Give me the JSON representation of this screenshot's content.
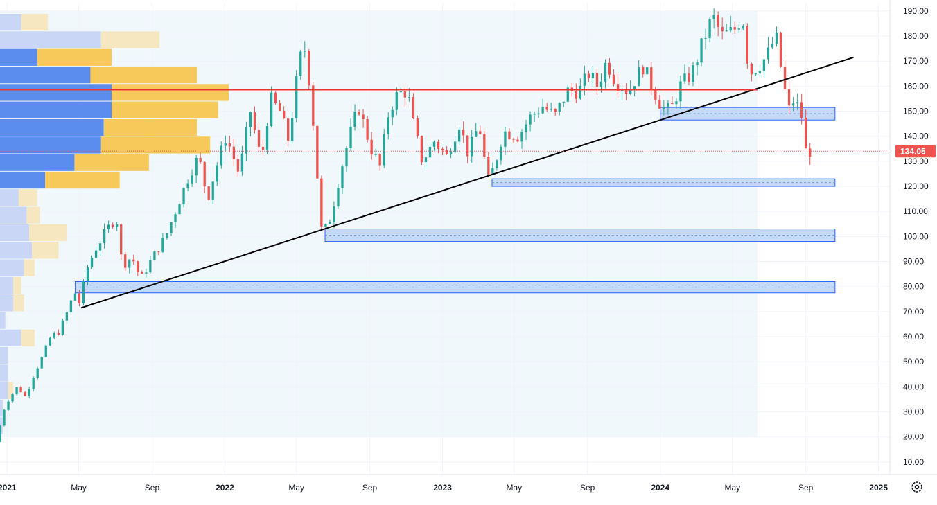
{
  "chart_data": {
    "type": "candlestick",
    "instrument_price_last": "134.05",
    "y_axis": {
      "min": 5,
      "max": 193,
      "ticks": [
        "10.00",
        "20.00",
        "30.00",
        "40.00",
        "50.00",
        "60.00",
        "70.00",
        "80.00",
        "90.00",
        "100.00",
        "110.00",
        "120.00",
        "130.00",
        "140.00",
        "150.00",
        "160.00",
        "170.00",
        "180.00",
        "190.00"
      ]
    },
    "x_axis": {
      "range": [
        "2020-12-20",
        "2025-01-20"
      ],
      "ticks": [
        {
          "label": "2021",
          "date": "2021-01-01",
          "bold": true
        },
        {
          "label": "May",
          "date": "2021-05-01"
        },
        {
          "label": "Sep",
          "date": "2021-09-01"
        },
        {
          "label": "2022",
          "date": "2022-01-01",
          "bold": true
        },
        {
          "label": "May",
          "date": "2022-05-01"
        },
        {
          "label": "Sep",
          "date": "2022-09-01"
        },
        {
          "label": "2023",
          "date": "2023-01-01",
          "bold": true
        },
        {
          "label": "May",
          "date": "2023-05-01"
        },
        {
          "label": "Sep",
          "date": "2023-09-01"
        },
        {
          "label": "2024",
          "date": "2024-01-01",
          "bold": true
        },
        {
          "label": "May",
          "date": "2024-05-01"
        },
        {
          "label": "Sep",
          "date": "2024-09-01"
        },
        {
          "label": "2025",
          "date": "2025-01-01",
          "bold": true
        }
      ]
    },
    "price_path": [
      [
        "2020-12-20",
        18
      ],
      [
        "2021-01-05",
        33
      ],
      [
        "2021-01-25",
        40
      ],
      [
        "2021-02-08",
        36
      ],
      [
        "2021-02-22",
        45
      ],
      [
        "2021-03-08",
        52
      ],
      [
        "2021-03-22",
        60
      ],
      [
        "2021-04-05",
        62
      ],
      [
        "2021-04-19",
        70
      ],
      [
        "2021-05-01",
        78
      ],
      [
        "2021-05-10",
        73
      ],
      [
        "2021-05-20",
        86
      ],
      [
        "2021-06-05",
        95
      ],
      [
        "2021-06-25",
        103
      ],
      [
        "2021-07-10",
        108
      ],
      [
        "2021-07-20",
        88
      ],
      [
        "2021-08-05",
        92
      ],
      [
        "2021-08-20",
        83
      ],
      [
        "2021-09-10",
        92
      ],
      [
        "2021-10-01",
        100
      ],
      [
        "2021-10-20",
        112
      ],
      [
        "2021-11-10",
        125
      ],
      [
        "2021-11-25",
        132
      ],
      [
        "2021-12-10",
        115
      ],
      [
        "2021-12-25",
        128
      ],
      [
        "2022-01-10",
        140
      ],
      [
        "2022-02-01",
        125
      ],
      [
        "2022-02-20",
        150
      ],
      [
        "2022-03-10",
        130
      ],
      [
        "2022-03-25",
        155
      ],
      [
        "2022-04-10",
        150
      ],
      [
        "2022-04-25",
        138
      ],
      [
        "2022-05-10",
        165
      ],
      [
        "2022-05-20",
        178
      ],
      [
        "2022-06-01",
        158
      ],
      [
        "2022-06-10",
        130
      ],
      [
        "2022-06-20",
        100
      ],
      [
        "2022-07-05",
        108
      ],
      [
        "2022-07-20",
        125
      ],
      [
        "2022-08-05",
        140
      ],
      [
        "2022-08-20",
        152
      ],
      [
        "2022-09-10",
        135
      ],
      [
        "2022-09-25",
        128
      ],
      [
        "2022-10-10",
        150
      ],
      [
        "2022-10-25",
        157
      ],
      [
        "2022-11-10",
        158
      ],
      [
        "2022-11-20",
        145
      ],
      [
        "2022-12-05",
        130
      ],
      [
        "2022-12-25",
        138
      ],
      [
        "2023-01-15",
        132
      ],
      [
        "2023-02-05",
        145
      ],
      [
        "2023-02-20",
        133
      ],
      [
        "2023-03-10",
        145
      ],
      [
        "2023-03-25",
        122
      ],
      [
        "2023-04-05",
        128
      ],
      [
        "2023-04-20",
        142
      ],
      [
        "2023-05-15",
        140
      ],
      [
        "2023-06-05",
        148
      ],
      [
        "2023-06-25",
        152
      ],
      [
        "2023-07-15",
        148
      ],
      [
        "2023-08-05",
        158
      ],
      [
        "2023-08-25",
        158
      ],
      [
        "2023-09-10",
        165
      ],
      [
        "2023-09-25",
        160
      ],
      [
        "2023-10-10",
        170
      ],
      [
        "2023-10-25",
        162
      ],
      [
        "2023-11-15",
        158
      ],
      [
        "2023-12-10",
        168
      ],
      [
        "2023-12-25",
        160
      ],
      [
        "2024-01-10",
        152
      ],
      [
        "2024-01-25",
        150
      ],
      [
        "2024-02-10",
        160
      ],
      [
        "2024-03-01",
        165
      ],
      [
        "2024-03-20",
        178
      ],
      [
        "2024-04-05",
        188
      ],
      [
        "2024-04-20",
        180
      ],
      [
        "2024-05-10",
        182
      ],
      [
        "2024-05-25",
        188
      ],
      [
        "2024-06-05",
        165
      ],
      [
        "2024-06-20",
        168
      ],
      [
        "2024-07-05",
        172
      ],
      [
        "2024-07-20",
        180
      ],
      [
        "2024-08-01",
        162
      ],
      [
        "2024-08-10",
        150
      ],
      [
        "2024-08-20",
        155
      ],
      [
        "2024-09-01",
        148
      ],
      [
        "2024-09-08",
        134.05
      ]
    ],
    "candle_interval_days": 7,
    "lines": [
      {
        "kind": "trendline",
        "from": [
          "2021-05-05",
          71.5
        ],
        "to": [
          "2024-11-20",
          171.5
        ],
        "color": "#000000"
      },
      {
        "kind": "resistance",
        "from": [
          "2020-12-20",
          158.5
        ],
        "to": [
          "2024-06-12",
          158.5
        ],
        "color": "#e53935"
      }
    ],
    "zones": [
      {
        "from": [
          "2021-04-25",
          82
        ],
        "to": [
          "2024-10-20",
          77.5
        ]
      },
      {
        "from": [
          "2022-06-18",
          103
        ],
        "to": [
          "2024-10-20",
          98
        ]
      },
      {
        "from": [
          "2023-03-25",
          123
        ],
        "to": [
          "2024-10-20",
          120
        ]
      },
      {
        "from": [
          "2024-01-01",
          151.5
        ],
        "to": [
          "2024-10-20",
          146.5
        ]
      }
    ],
    "background_region": {
      "from": "2020-12-20",
      "to": "2024-06-12",
      "y": [
        20,
        190
      ]
    },
    "volume_profile_bins": [
      {
        "low": 182,
        "high": 189,
        "up": 8,
        "down": 10
      },
      {
        "low": 175,
        "high": 182,
        "up": 38,
        "down": 22
      },
      {
        "low": 168,
        "high": 175,
        "up": 14,
        "down": 28
      },
      {
        "low": 161,
        "high": 168,
        "up": 34,
        "down": 40
      },
      {
        "low": 154,
        "high": 161,
        "up": 42,
        "down": 44
      },
      {
        "low": 147,
        "high": 154,
        "up": 42,
        "down": 40
      },
      {
        "low": 140,
        "high": 147,
        "up": 39,
        "down": 35
      },
      {
        "low": 133,
        "high": 140,
        "up": 38,
        "down": 41
      },
      {
        "low": 126,
        "high": 133,
        "up": 28,
        "down": 28
      },
      {
        "low": 119,
        "high": 126,
        "up": 17,
        "down": 28
      },
      {
        "low": 112,
        "high": 119,
        "up": 7,
        "down": 7
      },
      {
        "low": 105,
        "high": 112,
        "up": 10,
        "down": 5
      },
      {
        "low": 98,
        "high": 105,
        "up": 11,
        "down": 14
      },
      {
        "low": 91,
        "high": 98,
        "up": 12,
        "down": 10
      },
      {
        "low": 84,
        "high": 91,
        "up": 9,
        "down": 4
      },
      {
        "low": 77,
        "high": 84,
        "up": 5,
        "down": 3
      },
      {
        "low": 70,
        "high": 77,
        "up": 5,
        "down": 4
      },
      {
        "low": 63,
        "high": 70,
        "up": 2,
        "down": 0
      },
      {
        "low": 56,
        "high": 63,
        "up": 8,
        "down": 5
      },
      {
        "low": 49,
        "high": 56,
        "up": 3,
        "down": 0
      },
      {
        "low": 42,
        "high": 49,
        "up": 3,
        "down": 0
      },
      {
        "low": 35,
        "high": 42,
        "up": 3,
        "down": 2
      },
      {
        "low": 28,
        "high": 35,
        "up": 1,
        "down": 0
      },
      {
        "low": 21,
        "high": 28,
        "up": 1,
        "down": 0
      }
    ],
    "poc_price": 158.5,
    "colors": {
      "up": "#26a69a",
      "down": "#ef5350",
      "trendline": "#000000",
      "resistance": "#e53935",
      "zone_fill": "#bbd4f5",
      "zone_border": "#2962ff",
      "background": "#f0f8fc",
      "grid": "#f0f3fa",
      "vp_up": "#5b8def",
      "vp_down": "#f6c95a",
      "vp_up_faded": "#c9d6f5",
      "vp_down_faded": "#f7e7c0",
      "price_label": "#ef5350",
      "axis_text": "#131722"
    }
  },
  "ui": {
    "settings_icon": "gear-icon"
  }
}
